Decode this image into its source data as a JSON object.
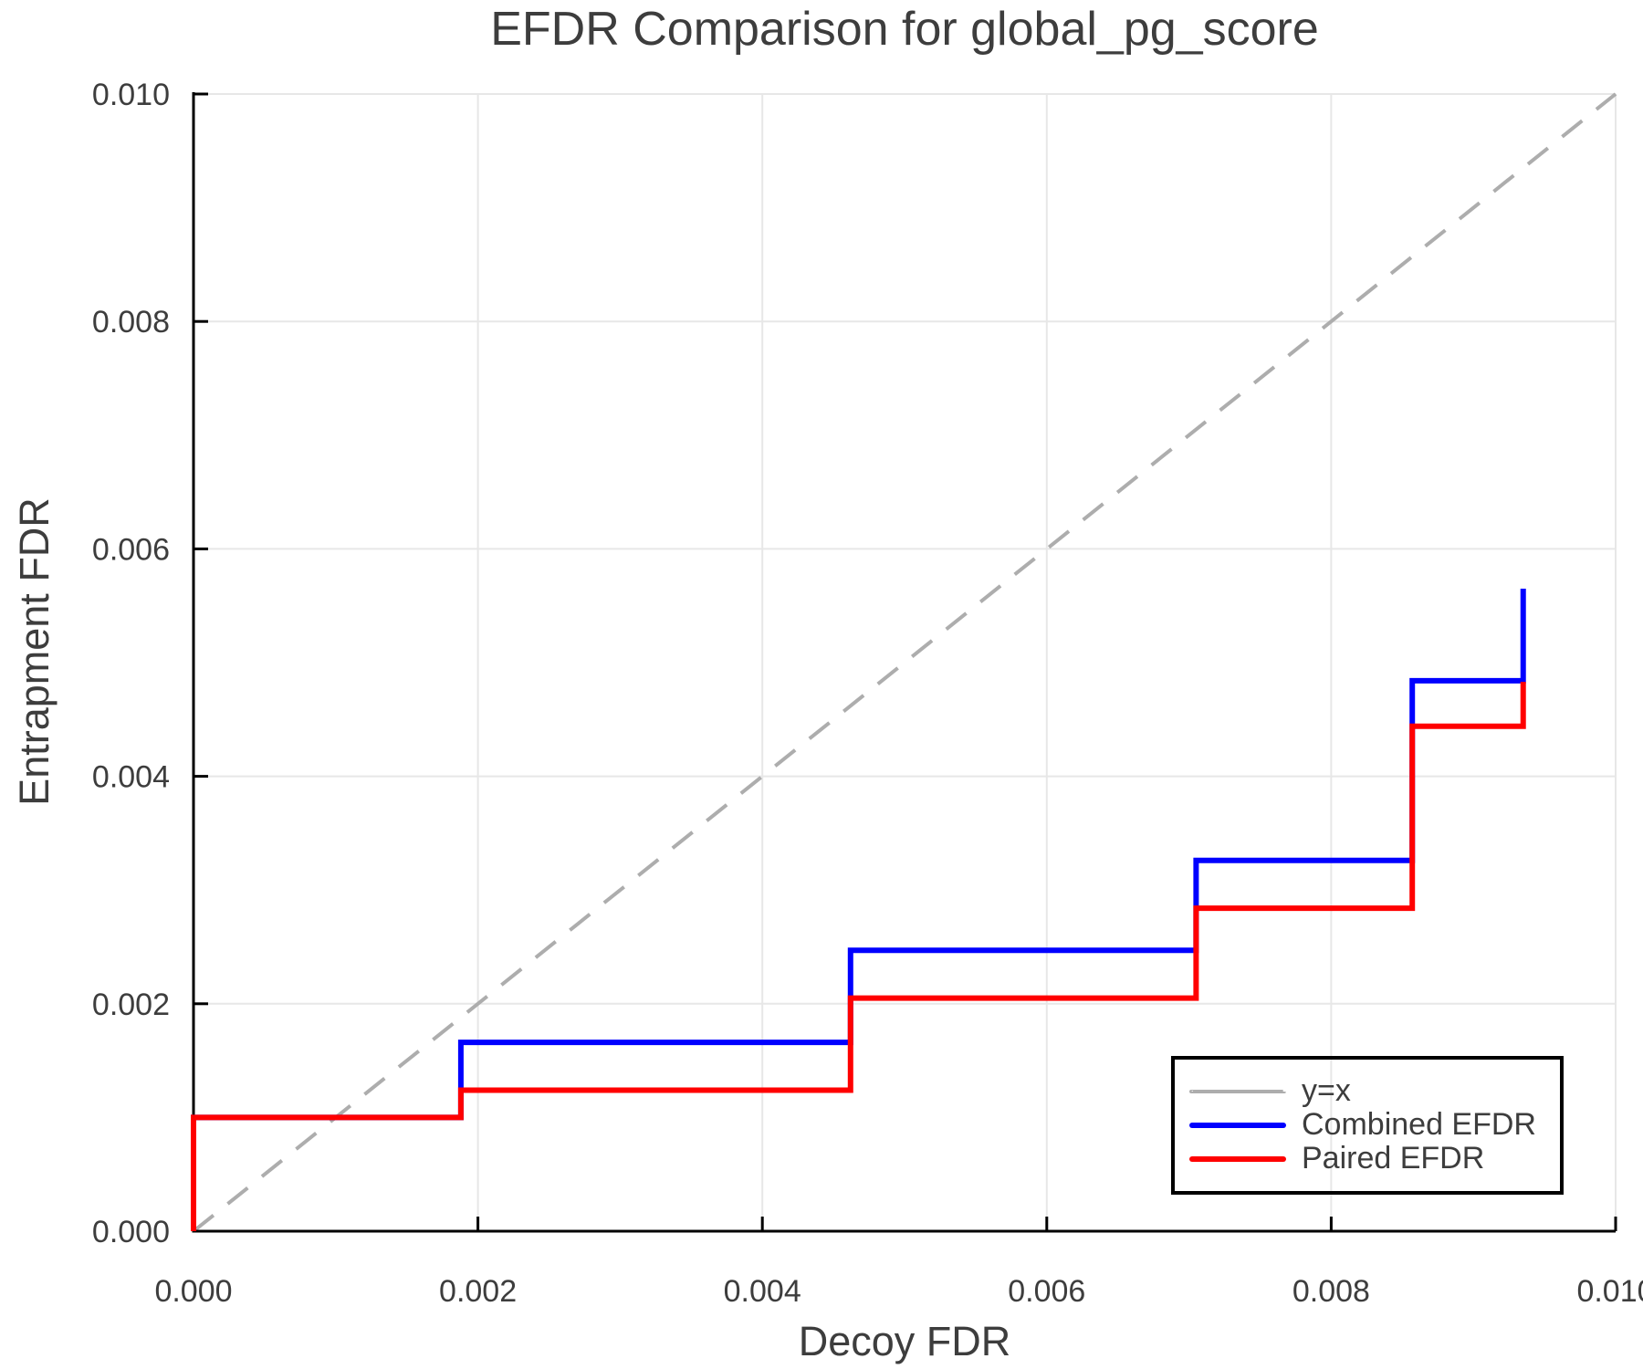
{
  "chart_data": {
    "type": "line",
    "line_style": "step",
    "title": "EFDR Comparison for global_pg_score",
    "xlabel": "Decoy FDR",
    "ylabel": "Entrapment FDR",
    "xlim": [
      0.0,
      0.01
    ],
    "ylim": [
      0.0,
      0.01
    ],
    "grid": true,
    "x_ticks": {
      "values": [
        0.0,
        0.002,
        0.004,
        0.006,
        0.008,
        0.01
      ],
      "labels": [
        "0.000",
        "0.002",
        "0.004",
        "0.006",
        "0.008",
        "0.010"
      ]
    },
    "y_ticks": {
      "values": [
        0.0,
        0.002,
        0.004,
        0.006,
        0.008,
        0.01
      ],
      "labels": [
        "0.000",
        "0.002",
        "0.004",
        "0.006",
        "0.008",
        "0.010"
      ]
    },
    "reference_line": {
      "label": "y=x",
      "color": "#adadad",
      "dashed": true,
      "points": [
        [
          0.0,
          0.0
        ],
        [
          0.01,
          0.01
        ]
      ]
    },
    "series": [
      {
        "name": "Combined EFDR",
        "color": "#0000ff",
        "points": [
          [
            0.0,
            0.0
          ],
          [
            0.0,
            0.001
          ],
          [
            0.00188,
            0.001
          ],
          [
            0.00188,
            0.00166
          ],
          [
            0.00462,
            0.00166
          ],
          [
            0.00462,
            0.00247
          ],
          [
            0.00705,
            0.00247
          ],
          [
            0.00705,
            0.00326
          ],
          [
            0.00857,
            0.00326
          ],
          [
            0.00857,
            0.00484
          ],
          [
            0.00935,
            0.00484
          ],
          [
            0.00935,
            0.00565
          ]
        ]
      },
      {
        "name": "Paired EFDR",
        "color": "#ff0000",
        "points": [
          [
            0.0,
            0.0
          ],
          [
            0.0,
            0.001
          ],
          [
            0.00188,
            0.001
          ],
          [
            0.00188,
            0.00124
          ],
          [
            0.00462,
            0.00124
          ],
          [
            0.00462,
            0.00205
          ],
          [
            0.00705,
            0.00205
          ],
          [
            0.00705,
            0.00284
          ],
          [
            0.00857,
            0.00284
          ],
          [
            0.00857,
            0.00444
          ],
          [
            0.00935,
            0.00444
          ],
          [
            0.00935,
            0.00483
          ]
        ]
      }
    ],
    "legend_position": "lower-right",
    "colors": {
      "grid": "#e7e7e7",
      "spine": "#000000",
      "text": "#3d3d3d"
    }
  }
}
